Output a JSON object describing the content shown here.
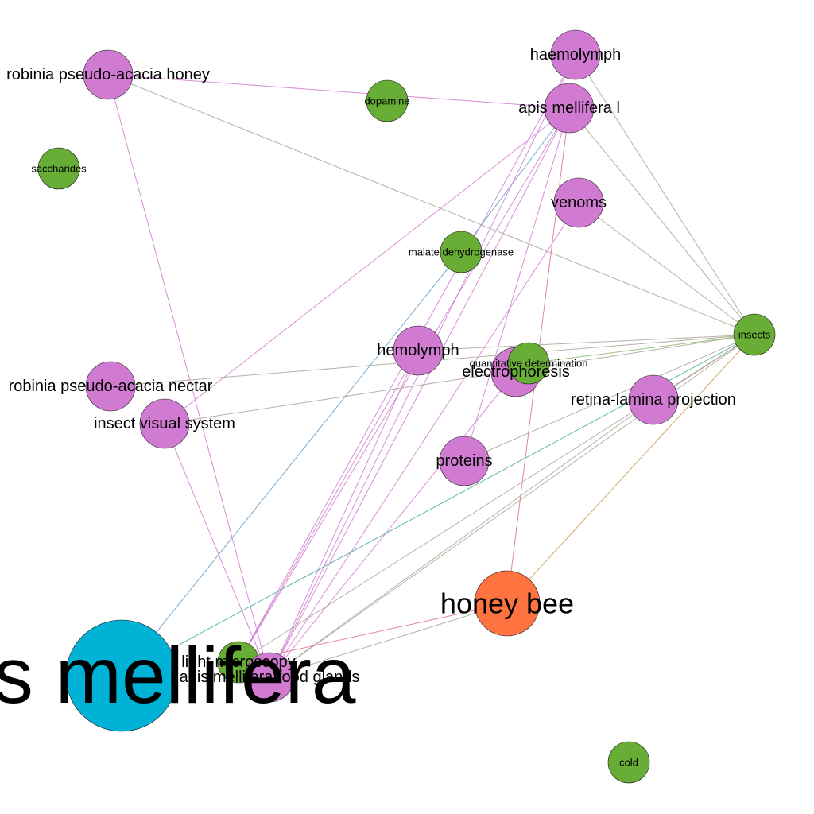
{
  "graph": {
    "colors": {
      "purple": "#d17ad1",
      "green": "#67ad36",
      "blue": "#00b2d6",
      "orange": "#ff7340",
      "edge_purple": "#d17ad1",
      "edge_gray": "#a8a394",
      "edge_blue": "#5b9ac9",
      "edge_teal": "#44aa99",
      "edge_red": "#e0708a",
      "edge_olive": "#c89a4e",
      "edge_green": "#8ab86a"
    },
    "nodes": [
      {
        "id": "robinia_honey",
        "label": "robinia pseudo-acacia honey",
        "category": "purple"
      },
      {
        "id": "dopamine",
        "label": "dopamine",
        "category": "green"
      },
      {
        "id": "haemolymph",
        "label": "haemolymph",
        "category": "purple"
      },
      {
        "id": "apis_l",
        "label": "apis mellifera l",
        "category": "purple"
      },
      {
        "id": "saccharides",
        "label": "saccharides",
        "category": "green"
      },
      {
        "id": "venoms",
        "label": "venoms",
        "category": "purple"
      },
      {
        "id": "malate",
        "label": "malate dehydrogenase",
        "category": "green"
      },
      {
        "id": "insects",
        "label": "insects",
        "category": "green"
      },
      {
        "id": "hemolymph",
        "label": "hemolymph",
        "category": "purple"
      },
      {
        "id": "electrophoresis",
        "label": "electrophoresis",
        "category": "purple"
      },
      {
        "id": "quant",
        "label": "quantitative determination",
        "category": "green"
      },
      {
        "id": "robinia_nectar",
        "label": "robinia pseudo-acacia nectar",
        "category": "purple"
      },
      {
        "id": "retina",
        "label": "retina-lamina projection",
        "category": "purple"
      },
      {
        "id": "visual",
        "label": "insect visual system",
        "category": "purple"
      },
      {
        "id": "proteins",
        "label": "proteins",
        "category": "purple"
      },
      {
        "id": "honeybee",
        "label": "honey bee",
        "category": "orange"
      },
      {
        "id": "apis",
        "label": "apis mellifera",
        "category": "blue"
      },
      {
        "id": "lightmicro",
        "label": "light microscopy",
        "category": "green"
      },
      {
        "id": "foodglands",
        "label": "apis mellifera food glands",
        "category": "purple"
      },
      {
        "id": "cold",
        "label": "cold",
        "category": "green"
      }
    ],
    "edges": [
      {
        "source": "robinia_honey",
        "target": "apis_l",
        "color": "edge_purple"
      },
      {
        "source": "robinia_honey",
        "target": "insects",
        "color": "edge_gray"
      },
      {
        "source": "robinia_honey",
        "target": "foodglands",
        "color": "edge_purple"
      },
      {
        "source": "haemolymph",
        "target": "insects",
        "color": "edge_gray"
      },
      {
        "source": "apis_l",
        "target": "insects",
        "color": "edge_gray"
      },
      {
        "source": "apis_l",
        "target": "visual",
        "color": "edge_purple"
      },
      {
        "source": "apis_l",
        "target": "malate",
        "color": "edge_blue"
      },
      {
        "source": "apis_l",
        "target": "foodglands",
        "color": "edge_purple"
      },
      {
        "source": "apis_l",
        "target": "lightmicro",
        "color": "edge_purple"
      },
      {
        "source": "apis_l",
        "target": "proteins",
        "color": "edge_purple"
      },
      {
        "source": "apis_l",
        "target": "honeybee",
        "color": "edge_red"
      },
      {
        "source": "haemolymph",
        "target": "foodglands",
        "color": "edge_purple"
      },
      {
        "source": "haemolymph",
        "target": "lightmicro",
        "color": "edge_purple"
      },
      {
        "source": "venoms",
        "target": "insects",
        "color": "edge_gray"
      },
      {
        "source": "venoms",
        "target": "foodglands",
        "color": "edge_purple"
      },
      {
        "source": "malate",
        "target": "apis",
        "color": "edge_blue"
      },
      {
        "source": "hemolymph",
        "target": "foodglands",
        "color": "edge_purple"
      },
      {
        "source": "hemolymph",
        "target": "lightmicro",
        "color": "edge_purple"
      },
      {
        "source": "hemolymph",
        "target": "insects",
        "color": "edge_gray"
      },
      {
        "source": "robinia_nectar",
        "target": "insects",
        "color": "edge_gray"
      },
      {
        "source": "visual",
        "target": "insects",
        "color": "edge_gray"
      },
      {
        "source": "visual",
        "target": "foodglands",
        "color": "edge_purple"
      },
      {
        "source": "quant",
        "target": "insects",
        "color": "edge_green"
      },
      {
        "source": "electrophoresis",
        "target": "foodglands",
        "color": "edge_purple"
      },
      {
        "source": "proteins",
        "target": "insects",
        "color": "edge_gray"
      },
      {
        "source": "retina",
        "target": "insects",
        "color": "edge_gray"
      },
      {
        "source": "insects",
        "target": "apis",
        "color": "edge_teal"
      },
      {
        "source": "insects",
        "target": "honeybee",
        "color": "edge_olive"
      },
      {
        "source": "insects",
        "target": "foodglands",
        "color": "edge_gray"
      },
      {
        "source": "retina",
        "target": "foodglands",
        "color": "edge_gray"
      },
      {
        "source": "honeybee",
        "target": "foodglands",
        "color": "edge_gray"
      },
      {
        "source": "honeybee",
        "target": "lightmicro",
        "color": "edge_red"
      },
      {
        "source": "insects",
        "target": "lightmicro",
        "color": "edge_gray"
      }
    ]
  }
}
